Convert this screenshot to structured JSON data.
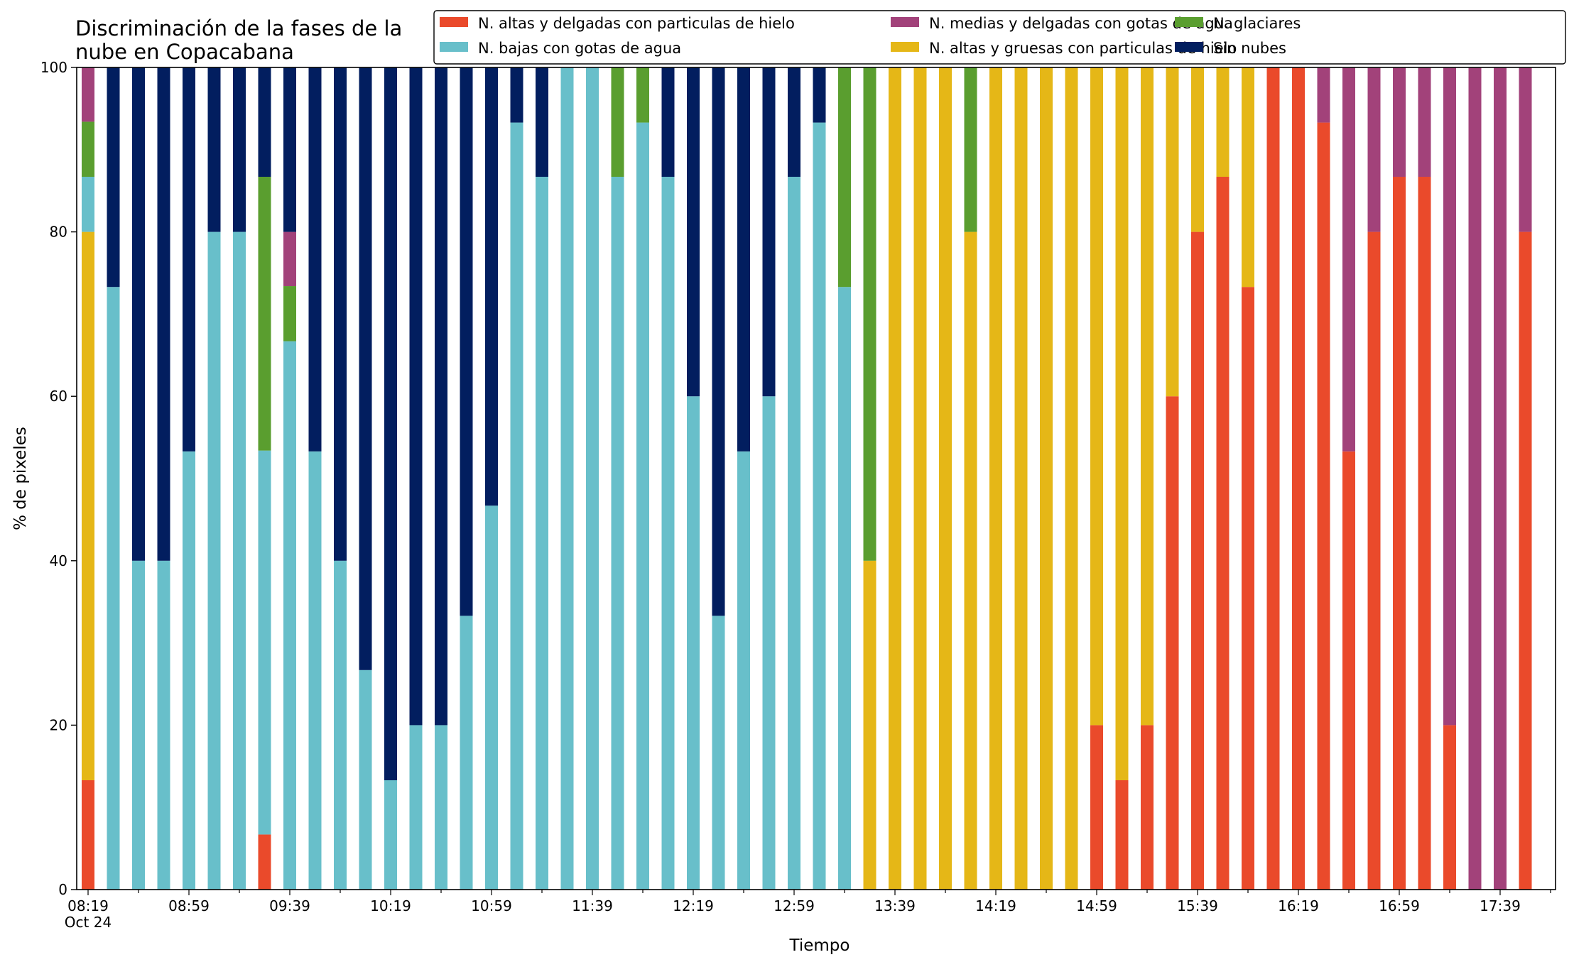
{
  "chart_data": {
    "type": "bar",
    "stacked": true,
    "title_lines": [
      "Discriminación de la fases de la",
      "nube en Copacabana"
    ],
    "xlabel": "Tiempo",
    "ylabel": "% de pixeles",
    "ylim": [
      0,
      100
    ],
    "yticks": [
      0,
      20,
      40,
      60,
      80,
      100
    ],
    "x_tick_labels": [
      "08:19",
      "08:59",
      "09:39",
      "10:19",
      "10:59",
      "11:39",
      "12:19",
      "12:59",
      "13:39",
      "14:19",
      "14:59",
      "15:39",
      "16:19",
      "16:59",
      "17:39"
    ],
    "x_tick_sublabel": "Oct 24",
    "x_start": "08:19",
    "bar_interval_minutes": 10,
    "grid": false,
    "legend_position": "top-right",
    "categories": [
      "08:19",
      "08:29",
      "08:39",
      "08:49",
      "08:59",
      "09:09",
      "09:19",
      "09:29",
      "09:39",
      "09:49",
      "09:59",
      "10:09",
      "10:19",
      "10:29",
      "10:39",
      "10:49",
      "10:59",
      "11:09",
      "11:19",
      "11:29",
      "11:39",
      "11:49",
      "11:59",
      "12:09",
      "12:19",
      "12:29",
      "12:39",
      "12:49",
      "12:59",
      "13:09",
      "13:19",
      "13:29",
      "13:39",
      "13:49",
      "13:59",
      "14:09",
      "14:19",
      "14:29",
      "14:39",
      "14:49",
      "14:59",
      "15:09",
      "15:19",
      "15:29",
      "15:39",
      "15:49",
      "15:59",
      "16:09",
      "16:19",
      "16:29",
      "16:39",
      "16:49",
      "16:59",
      "17:09",
      "17:19",
      "17:29",
      "17:39",
      "17:49"
    ],
    "series": [
      {
        "name": "N. altas y delgadas con particulas de hielo",
        "color": "#ea4a2b",
        "values": [
          13.3,
          0,
          0,
          0,
          0,
          0,
          0,
          6.7,
          0,
          0,
          0,
          0,
          0,
          0,
          0,
          0,
          0,
          0,
          0,
          0,
          0,
          0,
          0,
          0,
          0,
          0,
          0,
          0,
          0,
          0,
          0,
          0,
          0,
          0,
          0,
          0,
          0,
          0,
          0,
          0,
          20,
          13.3,
          20,
          60,
          80,
          86.7,
          73.3,
          100,
          100,
          93.3,
          53.3,
          80,
          86.7,
          86.7,
          20,
          0,
          0,
          80
        ]
      },
      {
        "name": "N. altas y gruesas con particulas de hielo",
        "color": "#e5b717",
        "values": [
          66.7,
          0,
          0,
          0,
          0,
          0,
          0,
          0,
          0,
          0,
          0,
          0,
          0,
          0,
          0,
          0,
          0,
          0,
          0,
          0,
          0,
          0,
          0,
          0,
          0,
          0,
          0,
          0,
          0,
          0,
          0,
          40,
          100,
          100,
          100,
          80,
          100,
          100,
          100,
          100,
          80,
          86.7,
          80,
          40,
          20,
          13.3,
          26.7,
          0,
          0,
          0,
          0,
          0,
          0,
          0,
          0,
          0,
          0,
          0
        ]
      },
      {
        "name": "N. bajas con gotas de agua",
        "color": "#68bfca",
        "values": [
          6.7,
          73.3,
          40,
          40,
          53.3,
          80,
          80,
          46.7,
          66.7,
          53.3,
          40,
          26.7,
          13.3,
          20,
          20,
          33.3,
          46.7,
          93.3,
          86.7,
          100,
          100,
          86.7,
          93.3,
          86.7,
          60,
          33.3,
          53.3,
          60,
          86.7,
          93.3,
          73.3,
          0,
          0,
          0,
          0,
          0,
          0,
          0,
          0,
          0,
          0,
          0,
          0,
          0,
          0,
          0,
          0,
          0,
          0,
          0,
          0,
          0,
          0,
          0,
          0,
          0,
          0,
          0
        ]
      },
      {
        "name": "N. glaciares",
        "color": "#5a9e2f",
        "values": [
          6.7,
          0,
          0,
          0,
          0,
          0,
          0,
          33.3,
          6.7,
          0,
          0,
          0,
          0,
          0,
          0,
          0,
          0,
          0,
          0,
          0,
          0,
          13.3,
          6.7,
          0,
          0,
          0,
          0,
          0,
          0,
          0,
          26.7,
          60,
          0,
          0,
          0,
          20,
          0,
          0,
          0,
          0,
          0,
          0,
          0,
          0,
          0,
          0,
          0,
          0,
          0,
          0,
          0,
          0,
          0,
          0,
          0,
          0,
          0,
          0
        ]
      },
      {
        "name": "N. medias y delgadas con gotas de agua",
        "color": "#a2427a",
        "values": [
          6.6,
          0,
          0,
          0,
          0,
          0,
          0,
          0,
          6.6,
          0,
          0,
          0,
          0,
          0,
          0,
          0,
          0,
          0,
          0,
          0,
          0,
          0,
          0,
          0,
          0,
          0,
          0,
          0,
          0,
          0,
          0,
          0,
          0,
          0,
          0,
          0,
          0,
          0,
          0,
          0,
          0,
          0,
          0,
          0,
          0,
          0,
          0,
          0,
          0,
          6.7,
          46.7,
          20,
          13.3,
          13.3,
          80,
          100,
          100,
          20
        ]
      },
      {
        "name": "Sin nubes",
        "color": "#021e5f",
        "values": [
          0,
          26.7,
          60,
          60,
          46.7,
          20,
          20,
          13.3,
          20,
          46.7,
          60,
          73.3,
          86.7,
          80,
          80,
          66.7,
          53.3,
          6.7,
          13.3,
          0,
          0,
          0,
          0,
          13.3,
          40,
          66.7,
          46.7,
          40,
          13.3,
          6.7,
          0,
          0,
          0,
          0,
          0,
          0,
          0,
          0,
          0,
          0,
          0,
          0,
          0,
          0,
          0,
          0,
          0,
          0,
          0,
          0,
          0,
          0,
          0,
          0,
          0,
          0,
          0,
          0
        ]
      }
    ],
    "legend_order": [
      "N. altas y delgadas con particulas de hielo",
      "N. bajas con gotas de agua",
      "N. medias y delgadas con gotas de agua",
      "N. altas y gruesas con particulas de hielo",
      "N. glaciares",
      "Sin nubes"
    ]
  }
}
